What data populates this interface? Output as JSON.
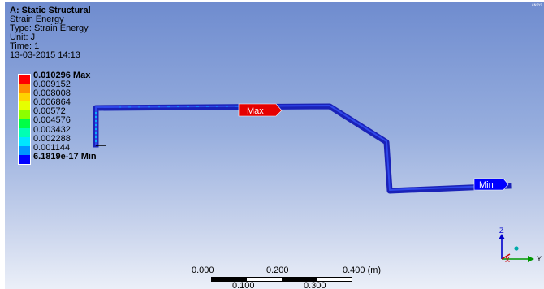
{
  "header": {
    "title": "A: Static Structural",
    "result_name": "Strain Energy",
    "type_line": "Type: Strain Energy",
    "unit_line": "Unit: J",
    "time_line": "Time: 1",
    "timestamp": "13-03-2015 14:13"
  },
  "legend": {
    "items": [
      {
        "label": "0.010296 Max",
        "color": "#ff0000",
        "bold": true
      },
      {
        "label": "0.009152",
        "color": "#ff8c00",
        "bold": false
      },
      {
        "label": "0.008008",
        "color": "#ffd200",
        "bold": false
      },
      {
        "label": "0.006864",
        "color": "#e6ff00",
        "bold": false
      },
      {
        "label": "0.00572",
        "color": "#8cff00",
        "bold": false
      },
      {
        "label": "0.004576",
        "color": "#00ff46",
        "bold": false
      },
      {
        "label": "0.003432",
        "color": "#00ffb4",
        "bold": false
      },
      {
        "label": "0.002288",
        "color": "#00e6ff",
        "bold": false
      },
      {
        "label": "0.001144",
        "color": "#0096ff",
        "bold": false
      },
      {
        "label": "6.1819e-17 Min",
        "color": "#0000ff",
        "bold": true
      }
    ]
  },
  "probes": {
    "max_label": "Max",
    "min_label": "Min"
  },
  "scale": {
    "top_labels": [
      "0.000",
      "0.200",
      "0.400 (m)"
    ],
    "bottom_labels": [
      "0.100",
      "0.300"
    ]
  },
  "triad": {
    "z": "Z",
    "x": "X",
    "y": "Y"
  },
  "corner_logo": "ANSYS"
}
